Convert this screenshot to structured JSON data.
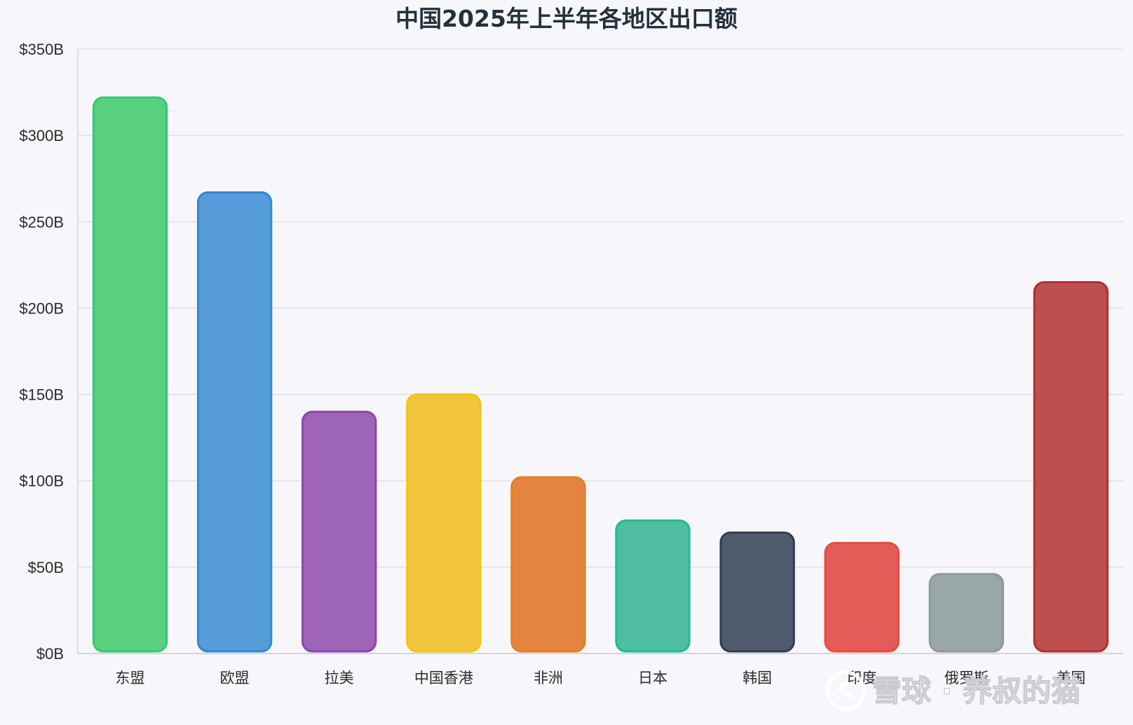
{
  "chart_data": {
    "type": "bar",
    "title": "中国2025年上半年各地区出口额",
    "xlabel": "",
    "ylabel": "",
    "ylim": [
      0,
      350
    ],
    "yticks": [
      0,
      50,
      100,
      150,
      200,
      250,
      300,
      350
    ],
    "ytick_labels": [
      "$0B",
      "$50B",
      "$100B",
      "$150B",
      "$200B",
      "$250B",
      "$300B",
      "$350B"
    ],
    "grid": true,
    "legend": "none",
    "categories": [
      "东盟",
      "欧盟",
      "拉美",
      "中国香港",
      "非洲",
      "日本",
      "韩国",
      "印度",
      "俄罗斯",
      "美国"
    ],
    "values": [
      322,
      267,
      140,
      150,
      102,
      77,
      70,
      64,
      46,
      215
    ],
    "colors": [
      "#2ecc71",
      "#3386d6",
      "#8e44ad",
      "#f1c40f",
      "#e67e22",
      "#1abc9c",
      "#2c3e50",
      "#e74c3c",
      "#8a9a9b",
      "#b03030"
    ],
    "fill_colors": [
      "#58d07d",
      "#559cd9",
      "#9e64b8",
      "#f0c53b",
      "#e38441",
      "#4fbea0",
      "#505c6d",
      "#e55b58",
      "#9aa7a7",
      "#bd504e"
    ]
  },
  "watermark": "雪球 · 养叔的猫"
}
